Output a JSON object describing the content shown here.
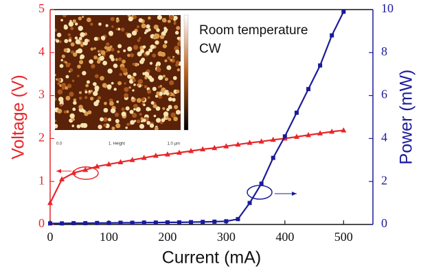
{
  "chart_data": {
    "type": "line",
    "x_label": "Current (mA)",
    "y_label": "Voltage (V)",
    "y2_label": "Power (mW)",
    "annotations": [
      "Room temperature",
      "CW"
    ],
    "inset_labels": [
      "0.0",
      "1. Height",
      "1.0 µm"
    ],
    "x": [
      0,
      20,
      40,
      60,
      80,
      100,
      120,
      140,
      160,
      180,
      200,
      220,
      240,
      260,
      280,
      300,
      320,
      340,
      360,
      380,
      400,
      420,
      440,
      460,
      480,
      500
    ],
    "xlim": [
      0,
      550
    ],
    "xticks": [
      0,
      100,
      200,
      300,
      400,
      500
    ],
    "ylim": [
      0,
      5
    ],
    "yticks": [
      0,
      1,
      2,
      3,
      4,
      5
    ],
    "y2lim": [
      0,
      10
    ],
    "y2ticks": [
      0,
      2,
      4,
      6,
      8,
      10
    ],
    "series": [
      {
        "color": "#e8262a",
        "marker": "triangle",
        "values": [
          0.5,
          1.05,
          1.2,
          1.27,
          1.35,
          1.4,
          1.45,
          1.5,
          1.55,
          1.6,
          1.63,
          1.67,
          1.71,
          1.75,
          1.78,
          1.82,
          1.86,
          1.9,
          1.93,
          1.97,
          2.0,
          2.04,
          2.08,
          2.12,
          2.16,
          2.19
        ]
      },
      {
        "color": "#1a1a9c",
        "marker": "square",
        "axis": "y2",
        "values": [
          0.05,
          0.05,
          0.06,
          0.06,
          0.07,
          0.07,
          0.08,
          0.08,
          0.09,
          0.09,
          0.1,
          0.1,
          0.11,
          0.12,
          0.13,
          0.15,
          0.25,
          1.0,
          1.9,
          3.1,
          4.1,
          5.2,
          6.3,
          7.4,
          8.8,
          9.9
        ]
      }
    ]
  }
}
